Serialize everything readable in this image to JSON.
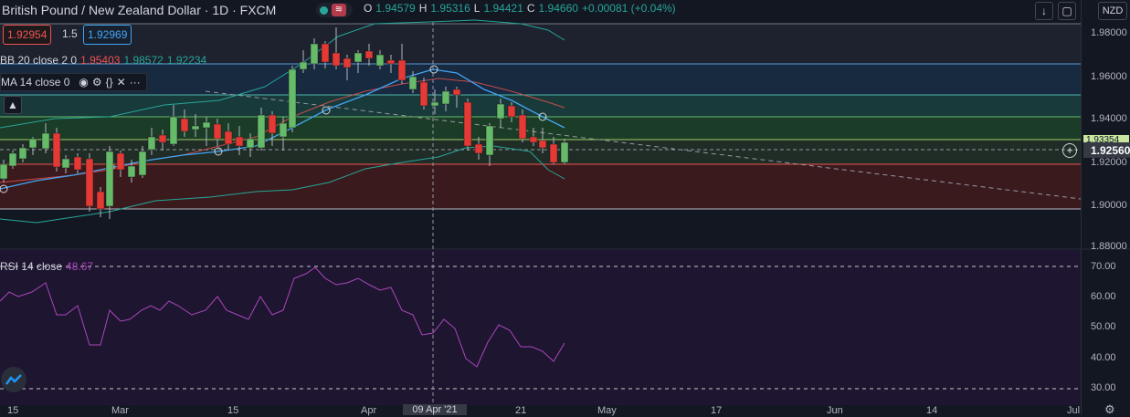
{
  "header": {
    "symbol": "British Pound / New Zealand Dollar · 1D · FXCM",
    "ohlc": {
      "o_label": "O",
      "o": "1.94579",
      "h_label": "H",
      "h": "1.95316",
      "l_label": "L",
      "l": "1.94421",
      "c_label": "C",
      "c": "1.94660",
      "change": "+0.00081 (+0.04%)"
    },
    "alert_glyph": "≋"
  },
  "price_boxes": {
    "sell": "1.92954",
    "spread": "1.5",
    "buy": "1.92969"
  },
  "indicators": {
    "bb": {
      "label": "BB 20 close 2 0",
      "v1": "1.95403",
      "v2": "1.98572",
      "v3": "1.92234"
    },
    "ma": {
      "label": "MA 14 close 0"
    },
    "rsi": {
      "label": "RSI 14 close",
      "value": "48.67"
    }
  },
  "top_right": {
    "currency": "NZD"
  },
  "y_axis": {
    "labels": [
      "1.98000",
      "1.96000",
      "1.94000",
      "1.92000",
      "1.90000",
      "1.88000"
    ],
    "current": "1.92560",
    "tag": "1.93354"
  },
  "rsi_axis": {
    "labels": [
      "70.00",
      "60.00",
      "50.00",
      "40.00",
      "30.00"
    ]
  },
  "x_axis": {
    "labels": [
      "15",
      "Mar",
      "15",
      "Apr",
      "21",
      "May",
      "17",
      "Jun",
      "14",
      "Jul"
    ],
    "crosshair": "09 Apr '21"
  },
  "colors": {
    "bull": "#26a69a",
    "bear": "#ef5350",
    "bg": "#131722",
    "rsi": "#9c27b0"
  }
}
